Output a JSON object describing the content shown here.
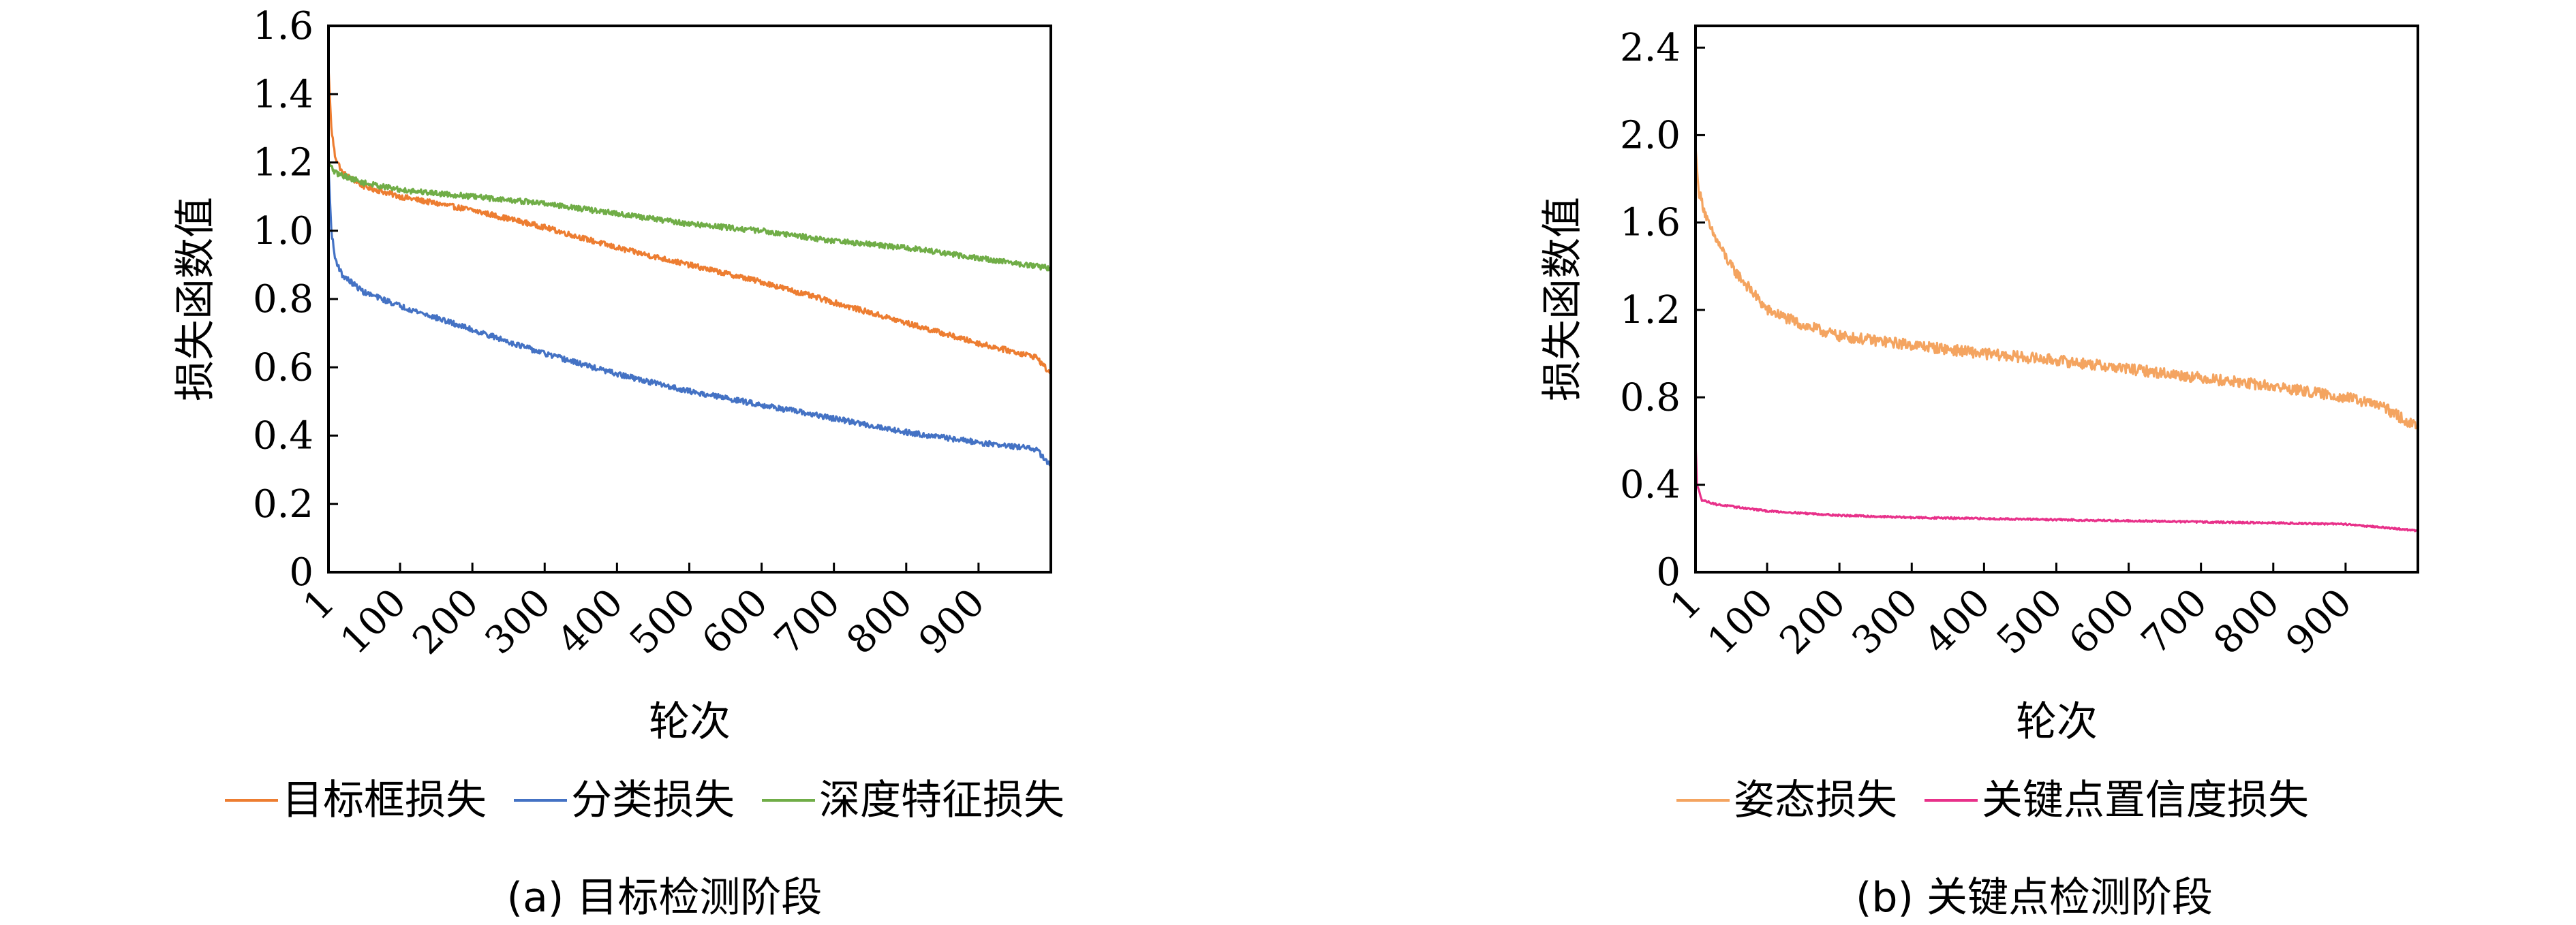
{
  "chart_data": [
    {
      "type": "line",
      "ylabel": "损失函数值",
      "xlabel": "轮次",
      "caption": "(a) 目标检测阶段",
      "x_ticks": [
        "1",
        "100",
        "200",
        "300",
        "400",
        "500",
        "600",
        "700",
        "800",
        "900"
      ],
      "y_ticks": [
        "0",
        "0.2",
        "0.4",
        "0.6",
        "0.8",
        "1.0",
        "1.2",
        "1.4",
        "1.6"
      ],
      "xlim": [
        1,
        1000
      ],
      "ylim": [
        0,
        1.6
      ],
      "legend_position": "bottom",
      "series": [
        {
          "name": "目标框损失",
          "color": "#ED7D31",
          "noise": 0.008,
          "points": [
            [
              1,
              1.48
            ],
            [
              5,
              1.3
            ],
            [
              10,
              1.22
            ],
            [
              20,
              1.17
            ],
            [
              50,
              1.13
            ],
            [
              100,
              1.1
            ],
            [
              200,
              1.06
            ],
            [
              300,
              1.01
            ],
            [
              400,
              0.95
            ],
            [
              500,
              0.9
            ],
            [
              600,
              0.85
            ],
            [
              700,
              0.79
            ],
            [
              800,
              0.73
            ],
            [
              900,
              0.67
            ],
            [
              980,
              0.63
            ],
            [
              1000,
              0.58
            ]
          ]
        },
        {
          "name": "分类损失",
          "color": "#4472C4",
          "noise": 0.008,
          "points": [
            [
              1,
              1.19
            ],
            [
              5,
              1.0
            ],
            [
              10,
              0.92
            ],
            [
              20,
              0.87
            ],
            [
              50,
              0.82
            ],
            [
              100,
              0.78
            ],
            [
              200,
              0.71
            ],
            [
              300,
              0.64
            ],
            [
              400,
              0.58
            ],
            [
              500,
              0.53
            ],
            [
              600,
              0.49
            ],
            [
              700,
              0.45
            ],
            [
              800,
              0.41
            ],
            [
              900,
              0.38
            ],
            [
              980,
              0.36
            ],
            [
              1000,
              0.31
            ]
          ]
        },
        {
          "name": "深度特征损失",
          "color": "#70AD47",
          "noise": 0.008,
          "points": [
            [
              1,
              1.2
            ],
            [
              10,
              1.17
            ],
            [
              50,
              1.14
            ],
            [
              100,
              1.12
            ],
            [
              200,
              1.1
            ],
            [
              300,
              1.08
            ],
            [
              400,
              1.05
            ],
            [
              500,
              1.02
            ],
            [
              600,
              1.0
            ],
            [
              700,
              0.97
            ],
            [
              800,
              0.95
            ],
            [
              900,
              0.92
            ],
            [
              1000,
              0.89
            ]
          ]
        }
      ]
    },
    {
      "type": "line",
      "ylabel": "损失函数值",
      "xlabel": "轮次",
      "caption": "(b) 关键点检测阶段",
      "x_ticks": [
        "1",
        "100",
        "200",
        "300",
        "400",
        "500",
        "600",
        "700",
        "800",
        "900"
      ],
      "y_ticks": [
        "0",
        "0.4",
        "0.8",
        "1.2",
        "1.6",
        "2.0",
        "2.4"
      ],
      "xlim": [
        1,
        1000
      ],
      "ylim": [
        0,
        2.5
      ],
      "legend_position": "bottom",
      "series": [
        {
          "name": "姿态损失",
          "color": "#F4A460",
          "noise": 0.025,
          "points": [
            [
              1,
              1.95
            ],
            [
              5,
              1.75
            ],
            [
              20,
              1.58
            ],
            [
              50,
              1.4
            ],
            [
              100,
              1.2
            ],
            [
              150,
              1.13
            ],
            [
              200,
              1.08
            ],
            [
              300,
              1.04
            ],
            [
              400,
              1.0
            ],
            [
              500,
              0.97
            ],
            [
              600,
              0.93
            ],
            [
              700,
              0.89
            ],
            [
              800,
              0.85
            ],
            [
              900,
              0.8
            ],
            [
              950,
              0.76
            ],
            [
              1000,
              0.66
            ]
          ]
        },
        {
          "name": "关键点置信度损失",
          "color": "#E8318A",
          "noise": 0.004,
          "points": [
            [
              1,
              0.6
            ],
            [
              3,
              0.4
            ],
            [
              10,
              0.33
            ],
            [
              30,
              0.31
            ],
            [
              100,
              0.28
            ],
            [
              200,
              0.26
            ],
            [
              300,
              0.25
            ],
            [
              400,
              0.245
            ],
            [
              500,
              0.24
            ],
            [
              600,
              0.235
            ],
            [
              700,
              0.23
            ],
            [
              800,
              0.225
            ],
            [
              900,
              0.22
            ],
            [
              1000,
              0.19
            ]
          ]
        }
      ]
    }
  ]
}
